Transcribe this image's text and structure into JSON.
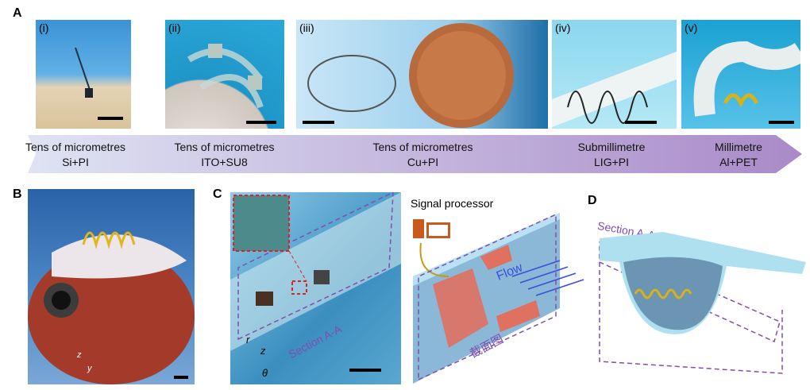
{
  "panel_labels": {
    "a": "A",
    "b": "B",
    "c": "C",
    "d": "D"
  },
  "panelA": {
    "photos": [
      {
        "label": "(i)"
      },
      {
        "label": "(ii)"
      },
      {
        "label": "(iii)"
      },
      {
        "label": "(iv)"
      },
      {
        "label": "(v)"
      }
    ],
    "scale_items": [
      {
        "thickness": "Tens of micrometres",
        "material": "Si+PI"
      },
      {
        "thickness": "Tens of micrometres",
        "material": "ITO+SU8"
      },
      {
        "thickness": "Tens of micrometres",
        "material": "Cu+PI"
      },
      {
        "thickness": "Submillimetre",
        "material": "LIG+PI"
      },
      {
        "thickness": "Millimetre",
        "material": "Al+PET"
      }
    ]
  },
  "panelB": {
    "axes": {
      "z": "z",
      "y": "y"
    }
  },
  "panelC": {
    "section_label": "Section A-A",
    "axes": {
      "r": "r",
      "z": "z",
      "theta": "θ"
    },
    "signal_processor": "Signal processor",
    "flow": "Flow",
    "cross_section": "截面图"
  },
  "panelD": {
    "section_label": "Section A-A"
  },
  "colors": {
    "arrow_start": "#dfe3f3",
    "arrow_end": "#a98ac8",
    "dash": "#7e4fb0",
    "flow": "#3a4fe0"
  }
}
